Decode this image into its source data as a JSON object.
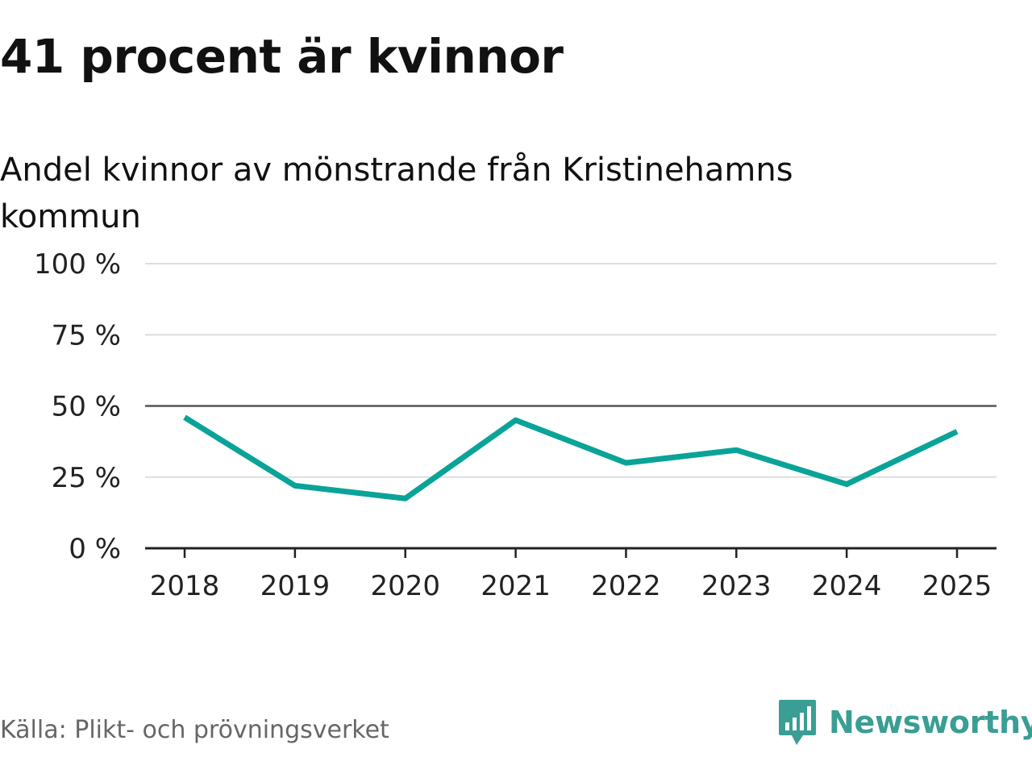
{
  "title": "41 procent är kvinnor",
  "subtitle": "Andel kvinnor av mönstrande från Kristinehamns kommun",
  "source": "Källa: Plikt- och prövningsverket",
  "brand": "Newsworthy",
  "colors": {
    "line": "#0aa398",
    "grid": "#dddddd",
    "reference": "#555555",
    "axis": "#222222",
    "brand": "#3a9e94"
  },
  "chart_data": {
    "type": "line",
    "title": "41 procent är kvinnor",
    "subtitle": "Andel kvinnor av mönstrande från Kristinehamns kommun",
    "xlabel": "",
    "ylabel": "",
    "categories": [
      "2018",
      "2019",
      "2020",
      "2021",
      "2022",
      "2023",
      "2024",
      "2025"
    ],
    "series": [
      {
        "name": "Andel kvinnor",
        "values": [
          46,
          22,
          17.5,
          45,
          30,
          34.5,
          22.5,
          41
        ]
      }
    ],
    "ylim": [
      0,
      100
    ],
    "yticks": [
      0,
      25,
      50,
      75,
      100
    ],
    "ytick_labels": [
      "0 %",
      "25 %",
      "50 %",
      "75 %",
      "100 %"
    ],
    "reference_line": 50,
    "grid": true,
    "legend": "none"
  }
}
